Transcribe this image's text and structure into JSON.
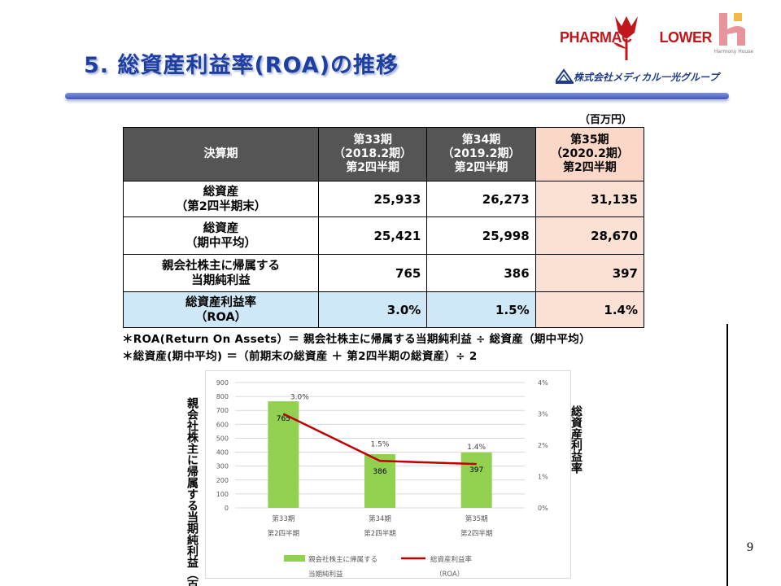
{
  "title": "5. 総資産利益率(ROA)の推移",
  "logos": {
    "pharmacy": "PHARMAC",
    "pharmacy_suffix": "LOWER",
    "harmony": "Harmony House",
    "medical": "株式会社メディカル一光グループ"
  },
  "unit": "（百万円）",
  "table": {
    "header": {
      "label": "決算期",
      "periods": [
        {
          "l1": "第33期",
          "l2": "（2018.2期）",
          "l3": "第2四半期"
        },
        {
          "l1": "第34期",
          "l2": "（2019.2期）",
          "l3": "第2四半期"
        },
        {
          "l1": "第35期",
          "l2": "（2020.2期）",
          "l3": "第2四半期"
        }
      ]
    },
    "rows": [
      {
        "l1": "総資産",
        "l2": "（第2四半期末）",
        "values": [
          "25,933",
          "26,273",
          "31,135"
        ]
      },
      {
        "l1": "総資産",
        "l2": "（期中平均）",
        "values": [
          "25,421",
          "25,998",
          "28,670"
        ]
      },
      {
        "l1": "親会社株主に帰属する",
        "l2": "当期純利益",
        "values": [
          "765",
          "386",
          "397"
        ]
      },
      {
        "l1": "総資産利益率",
        "l2": "（ROA）",
        "values": [
          "3.0%",
          "1.5%",
          "1.4%"
        ]
      }
    ]
  },
  "notes": [
    "＊ROA(Return On Assets）＝ 親会社株主に帰属する当期純利益 ÷ 総資産（期中平均）",
    "＊総資産(期中平均) ＝（前期末の総資産 ＋ 第2四半期の総資産）÷ 2"
  ],
  "chart_data": {
    "type": "bar",
    "categories": [
      "第33期\n第2四半期",
      "第34期\n第2四半期",
      "第35期\n第2四半期"
    ],
    "series": [
      {
        "name": "親会社株主に帰属する当期純利益",
        "type": "bar",
        "axis": "left",
        "values": [
          765,
          386,
          397
        ],
        "color": "#92d050"
      },
      {
        "name": "総資産利益率（ROA）",
        "type": "line",
        "axis": "right",
        "values": [
          3.0,
          1.5,
          1.4
        ],
        "color": "#c00000"
      }
    ],
    "bar_labels": [
      "765",
      "386",
      "397"
    ],
    "line_labels": [
      "3.0%",
      "1.5%",
      "1.4%"
    ],
    "y_left": {
      "label": "親会社株主に帰属する当期純利益（百万円）",
      "min": 0,
      "max": 900,
      "ticks": [
        "0",
        "100",
        "200",
        "300",
        "400",
        "500",
        "600",
        "700",
        "800",
        "900"
      ]
    },
    "y_right": {
      "label": "総資産利益率",
      "min": 0,
      "max": 4,
      "ticks": [
        "0%",
        "1%",
        "2%",
        "3%",
        "4%"
      ]
    },
    "legend": {
      "position": "bottom",
      "bar_l1": "親会社株主に帰属する",
      "bar_l2": "当期純利益",
      "line_l1": "総資産利益率",
      "line_l2": "（ROA）"
    },
    "grid": true
  },
  "page_number": "9"
}
